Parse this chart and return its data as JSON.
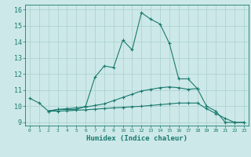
{
  "xlabel": "Humidex (Indice chaleur)",
  "ylabel": "",
  "background_color": "#cce8e8",
  "grid_color": "#aacfcf",
  "line_color": "#1a7a6e",
  "xlim": [
    -0.5,
    23.5
  ],
  "ylim": [
    8.8,
    16.3
  ],
  "yticks": [
    9,
    10,
    11,
    12,
    13,
    14,
    15,
    16
  ],
  "xticks": [
    0,
    1,
    2,
    3,
    4,
    5,
    6,
    7,
    8,
    9,
    10,
    11,
    12,
    13,
    14,
    15,
    16,
    17,
    18,
    19,
    20,
    21,
    22,
    23
  ],
  "series": [
    {
      "x": [
        0,
        1,
        2,
        3,
        4,
        5,
        6,
        7,
        8,
        9,
        10,
        11,
        12,
        13,
        14,
        15,
        16,
        17,
        18,
        19,
        20,
        21,
        22,
        23
      ],
      "y": [
        10.5,
        10.2,
        9.7,
        9.8,
        9.8,
        9.8,
        10.0,
        11.8,
        12.5,
        12.4,
        14.1,
        13.5,
        15.8,
        15.4,
        15.1,
        13.9,
        11.7,
        11.7,
        11.1,
        10.0,
        9.7,
        9.0,
        9.0,
        9.0
      ]
    },
    {
      "x": [
        2,
        3,
        4,
        5,
        6,
        7,
        8,
        9,
        10,
        11,
        12,
        13,
        14,
        15,
        16,
        17,
        18
      ],
      "y": [
        9.7,
        9.8,
        9.85,
        9.9,
        9.95,
        10.05,
        10.15,
        10.35,
        10.55,
        10.75,
        10.95,
        11.05,
        11.15,
        11.2,
        11.15,
        11.05,
        11.1
      ]
    },
    {
      "x": [
        2,
        3,
        4,
        5,
        6,
        7,
        8,
        9,
        10,
        11,
        12,
        13,
        14,
        15,
        16,
        17,
        18,
        19,
        20,
        21,
        22,
        23
      ],
      "y": [
        9.7,
        9.7,
        9.72,
        9.75,
        9.78,
        9.82,
        9.86,
        9.9,
        9.93,
        9.97,
        10.0,
        10.05,
        10.1,
        10.15,
        10.2,
        10.2,
        10.2,
        9.85,
        9.55,
        9.25,
        9.0,
        9.0
      ]
    }
  ]
}
